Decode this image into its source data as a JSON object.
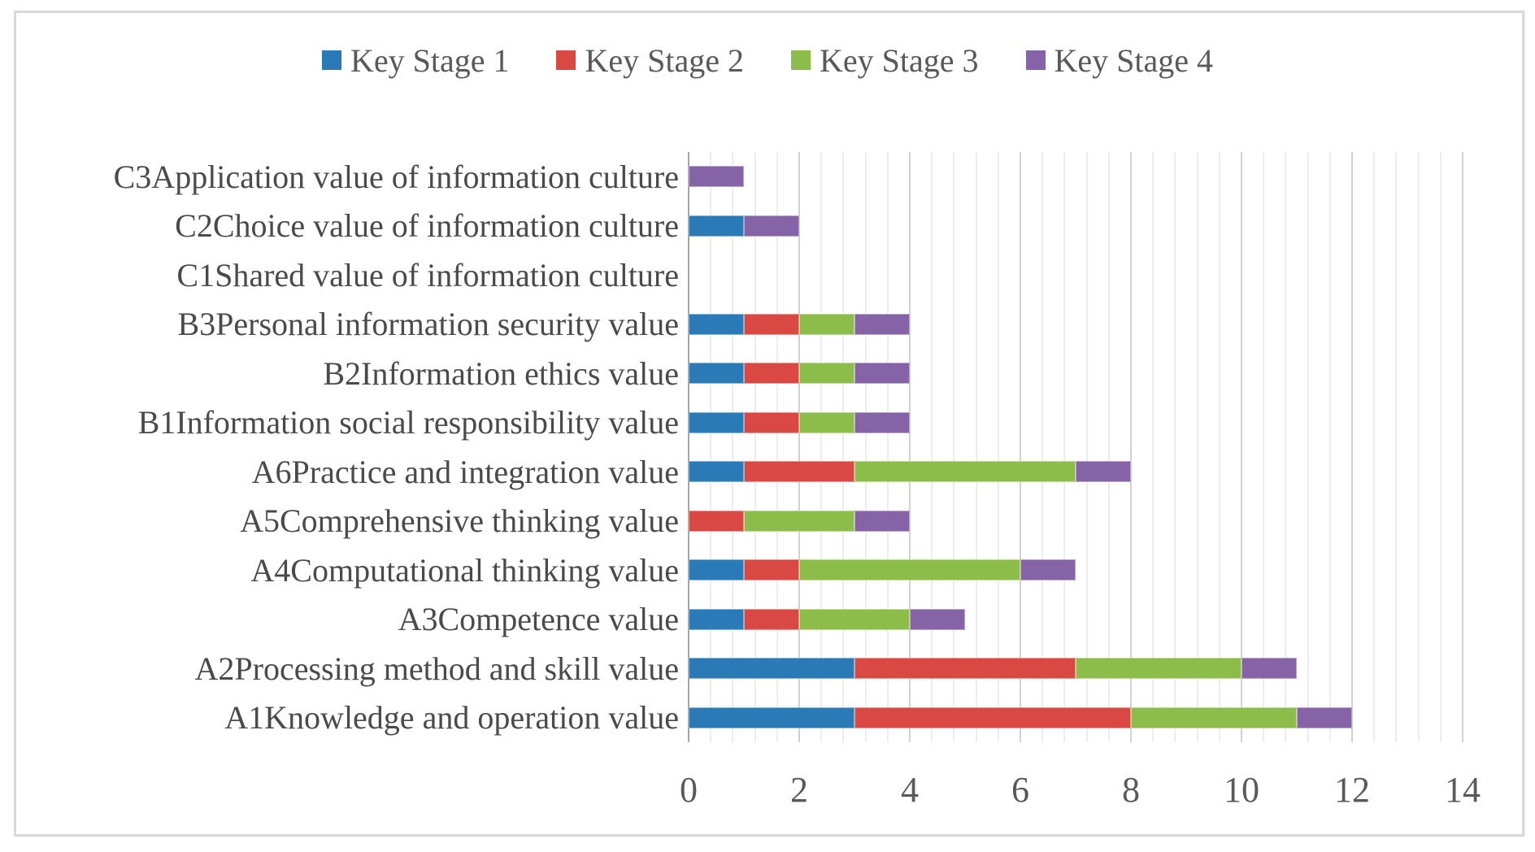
{
  "figure": {
    "background": "#ffffff",
    "border_color": "#d8d8d8"
  },
  "colors": {
    "axis_text": "#595959",
    "category_text": "#4a4a4a",
    "gridline_minor": "#ededed",
    "gridline_major": "#d2d2d2",
    "axis_line": "#a6a6a6"
  },
  "chart_data": {
    "type": "bar",
    "orientation": "horizontal",
    "stacked": true,
    "title": "",
    "xlabel": "",
    "ylabel": "",
    "xlim": [
      0,
      14
    ],
    "x_ticks": [
      0,
      2,
      4,
      6,
      8,
      10,
      12,
      14
    ],
    "minor_tick_step": 0.4,
    "grid": "vertical",
    "legend_position": "top",
    "categories": [
      "C3Application value of information culture",
      "C2Choice value of information culture",
      "C1Shared value of information culture",
      "B3Personal information security value",
      "B2Information ethics value",
      "B1Information social responsibility value",
      "A6Practice and integration value",
      "A5Comprehensive thinking value",
      "A4Computational thinking value",
      "A3Competence value",
      "A2Processing method and skill value",
      "A1Knowledge and operation value"
    ],
    "series": [
      {
        "name": "Key Stage 1",
        "color": "#2b7ab8",
        "values": [
          0,
          1,
          0,
          1,
          1,
          1,
          1,
          0,
          1,
          1,
          3,
          3
        ]
      },
      {
        "name": "Key Stage 2",
        "color": "#d94842",
        "values": [
          0,
          0,
          0,
          1,
          1,
          1,
          2,
          1,
          1,
          1,
          4,
          5
        ]
      },
      {
        "name": "Key Stage 3",
        "color": "#8cbd4a",
        "values": [
          0,
          0,
          0,
          1,
          1,
          1,
          4,
          2,
          4,
          2,
          3,
          3
        ]
      },
      {
        "name": "Key Stage 4",
        "color": "#8662a7",
        "values": [
          1,
          1,
          0,
          1,
          1,
          1,
          1,
          1,
          1,
          1,
          1,
          1
        ]
      }
    ],
    "totals_by_category": [
      1,
      2,
      0,
      4,
      4,
      4,
      8,
      4,
      7,
      5,
      11,
      12
    ]
  }
}
